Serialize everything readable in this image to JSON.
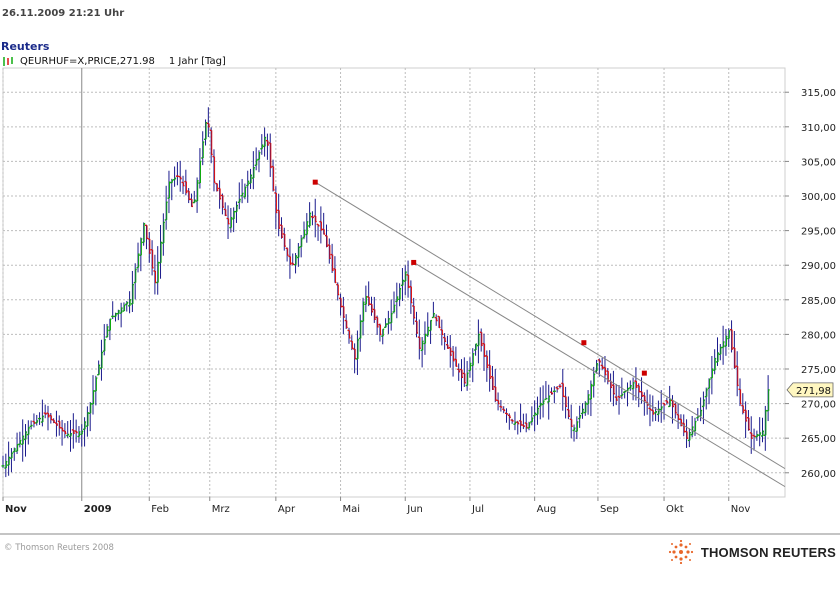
{
  "header": {
    "datestamp": "26.11.2009  21:21 Uhr",
    "brand": "Reuters",
    "legend_text": "QEURHUF=X,PRICE,271.98",
    "period_text": "1 Jahr [Tag]"
  },
  "footer": {
    "copyright": "© Thomson Reuters 2008",
    "logo_text": "THOMSON REUTERS"
  },
  "colors": {
    "up": "#11aa11",
    "down": "#dd1111",
    "neutral": "#1a1a8c",
    "trendline": "#888888",
    "marker": "#cc0000",
    "last_price_bg": "#fff7c0"
  },
  "chart_data": {
    "type": "ohlc",
    "instrument": "QEURHUF=X",
    "last_price": 271.98,
    "last_price_label": "271,98",
    "ylim": [
      256.5,
      318.5
    ],
    "yticks": [
      260,
      265,
      270,
      275,
      280,
      285,
      290,
      295,
      300,
      305,
      310,
      315
    ],
    "ytick_labels": [
      "260,00",
      "265,00",
      "270,00",
      "275,00",
      "280,00",
      "285,00",
      "290,00",
      "295,00",
      "300,00",
      "305,00",
      "310,00",
      "315,00"
    ],
    "grid": true,
    "xtick_labels": [
      {
        "label": "Nov",
        "day": 0
      },
      {
        "label": "2009",
        "day": 56
      },
      {
        "label": "Feb",
        "day": 104
      },
      {
        "label": "Mrz",
        "day": 147
      },
      {
        "label": "Apr",
        "day": 194
      },
      {
        "label": "Mai",
        "day": 240
      },
      {
        "label": "Jun",
        "day": 286
      },
      {
        "label": "Jul",
        "day": 332
      },
      {
        "label": "Aug",
        "day": 378
      },
      {
        "label": "Sep",
        "day": 423
      },
      {
        "label": "Okt",
        "day": 470
      },
      {
        "label": "Nov",
        "day": 516
      }
    ],
    "x_days_total": 556,
    "price_path": [
      [
        0,
        261.0
      ],
      [
        18,
        266.5
      ],
      [
        30,
        268.5
      ],
      [
        45,
        265.5
      ],
      [
        56,
        266.0
      ],
      [
        62,
        270.0
      ],
      [
        75,
        282.0
      ],
      [
        90,
        285.0
      ],
      [
        100,
        296.0
      ],
      [
        108,
        287.5
      ],
      [
        118,
        302.0
      ],
      [
        125,
        303.0
      ],
      [
        135,
        298.0
      ],
      [
        145,
        312.0
      ],
      [
        150,
        302.0
      ],
      [
        160,
        296.0
      ],
      [
        176,
        303.0
      ],
      [
        187,
        309.0
      ],
      [
        195,
        296.0
      ],
      [
        205,
        289.5
      ],
      [
        218,
        297.5
      ],
      [
        228,
        294.5
      ],
      [
        240,
        284.0
      ],
      [
        250,
        276.5
      ],
      [
        257,
        286.0
      ],
      [
        268,
        280.0
      ],
      [
        276,
        283.0
      ],
      [
        286,
        289.0
      ],
      [
        296,
        278.0
      ],
      [
        306,
        283.0
      ],
      [
        318,
        277.0
      ],
      [
        328,
        273.0
      ],
      [
        338,
        280.0
      ],
      [
        350,
        270.5
      ],
      [
        362,
        267.5
      ],
      [
        372,
        266.5
      ],
      [
        382,
        270.0
      ],
      [
        396,
        272.5
      ],
      [
        405,
        266.0
      ],
      [
        415,
        270.5
      ],
      [
        423,
        276.5
      ],
      [
        436,
        270.5
      ],
      [
        448,
        273.0
      ],
      [
        462,
        268.5
      ],
      [
        474,
        270.5
      ],
      [
        486,
        265.0
      ],
      [
        496,
        269.0
      ],
      [
        506,
        276.5
      ],
      [
        516,
        280.5
      ],
      [
        524,
        270.0
      ],
      [
        532,
        265.0
      ],
      [
        540,
        266.0
      ],
      [
        544,
        271.98
      ]
    ],
    "trendlines": [
      {
        "from": {
          "day": 222,
          "price": 302.0
        },
        "to": {
          "day": 556,
          "price": 260.6
        }
      },
      {
        "from": {
          "day": 292,
          "price": 290.4
        },
        "to": {
          "day": 556,
          "price": 258.0
        }
      }
    ],
    "trend_markers": [
      {
        "day": 222,
        "price": 302.0
      },
      {
        "day": 292,
        "price": 290.4
      },
      {
        "day": 413,
        "price": 278.8
      },
      {
        "day": 456,
        "price": 274.4
      }
    ]
  }
}
